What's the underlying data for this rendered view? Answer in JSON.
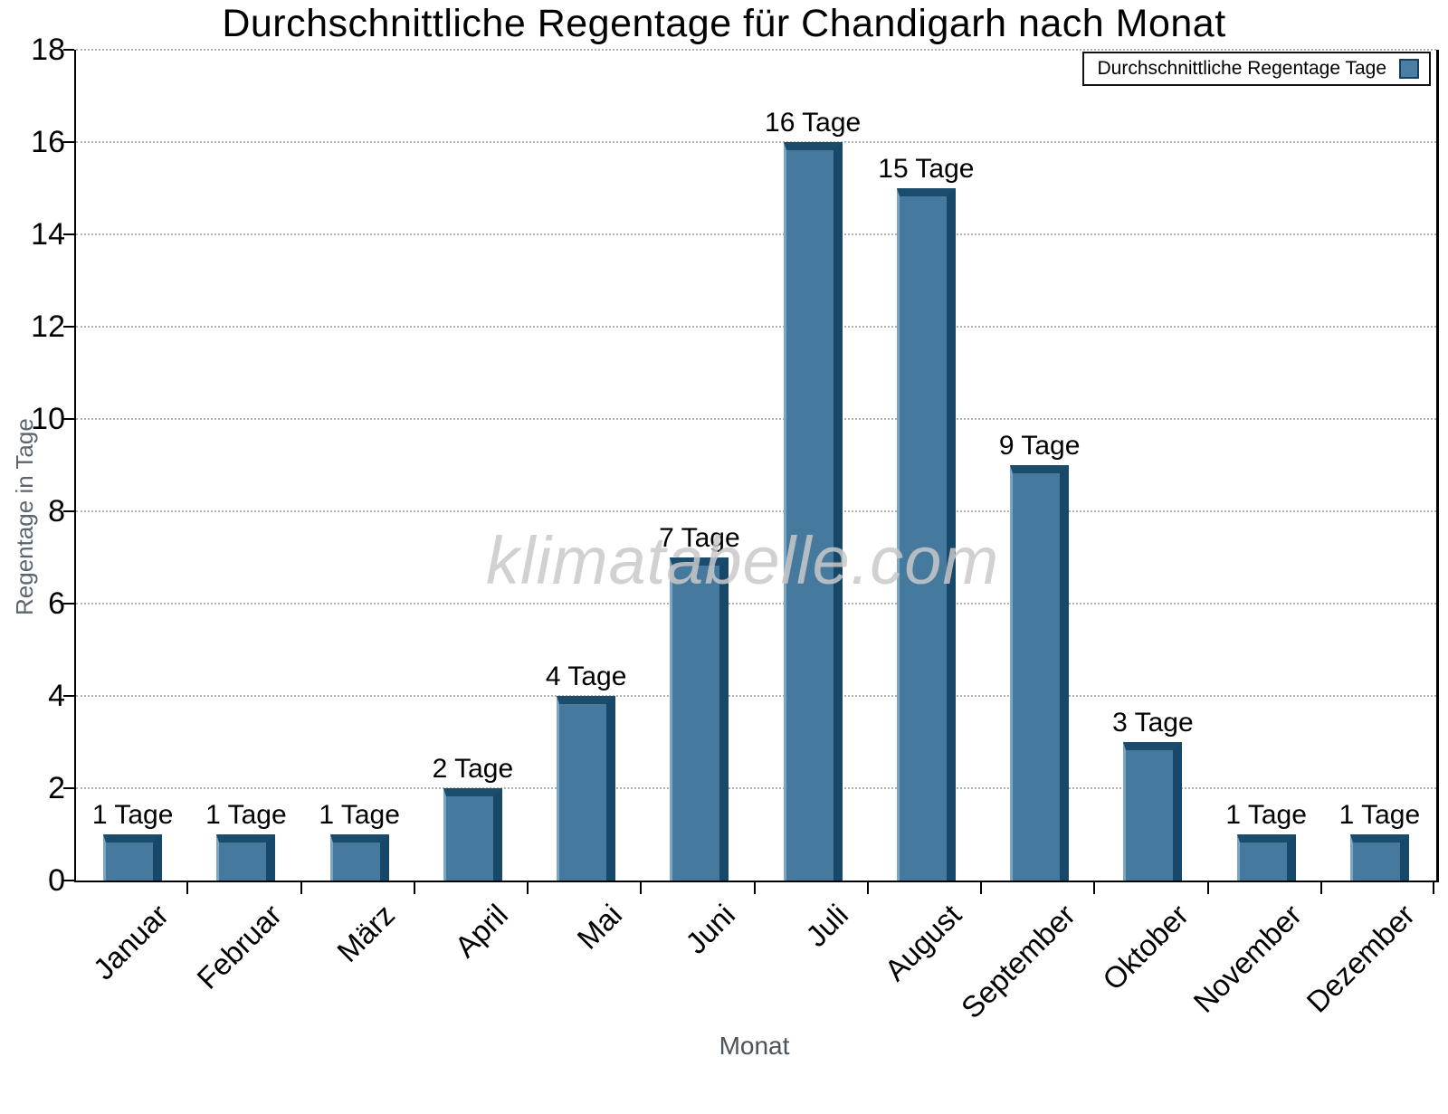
{
  "chart_data": {
    "type": "bar",
    "title": "Durchschnittliche Regentage für Chandigarh nach Monat",
    "xlabel": "Monat",
    "ylabel": "Regentage in Tage",
    "categories": [
      "Januar",
      "Februar",
      "März",
      "April",
      "Mai",
      "Juni",
      "Juli",
      "August",
      "September",
      "Oktober",
      "November",
      "Dezember"
    ],
    "values": [
      1,
      1,
      1,
      2,
      4,
      7,
      16,
      15,
      9,
      3,
      1,
      1
    ],
    "bar_labels": [
      "1 Tage",
      "1 Tage",
      "1 Tage",
      "2 Tage",
      "4 Tage",
      "7 Tage",
      "16 Tage",
      "15 Tage",
      "9 Tage",
      "3 Tage",
      "1 Tage",
      "1 Tage"
    ],
    "ylim": [
      0,
      18
    ],
    "ytick_step": 2,
    "grid": "horizontal-dotted",
    "legend": {
      "label": "Durchschnittliche Regentage Tage",
      "position": "top-right"
    },
    "watermark": "klimatabelle.com",
    "colors": {
      "bar_face": "#45799e",
      "bar_edge_dark_top": "#1b4c6c",
      "bar_edge_dark_right": "#17486a",
      "bar_edge_light_left": "#7aa6c2",
      "legend_swatch": "#4a7ea4",
      "grid_line": "#b0b0b0",
      "axis": "#000000",
      "axis_title": "#5b646e",
      "watermark": "#c9c9c9"
    }
  }
}
